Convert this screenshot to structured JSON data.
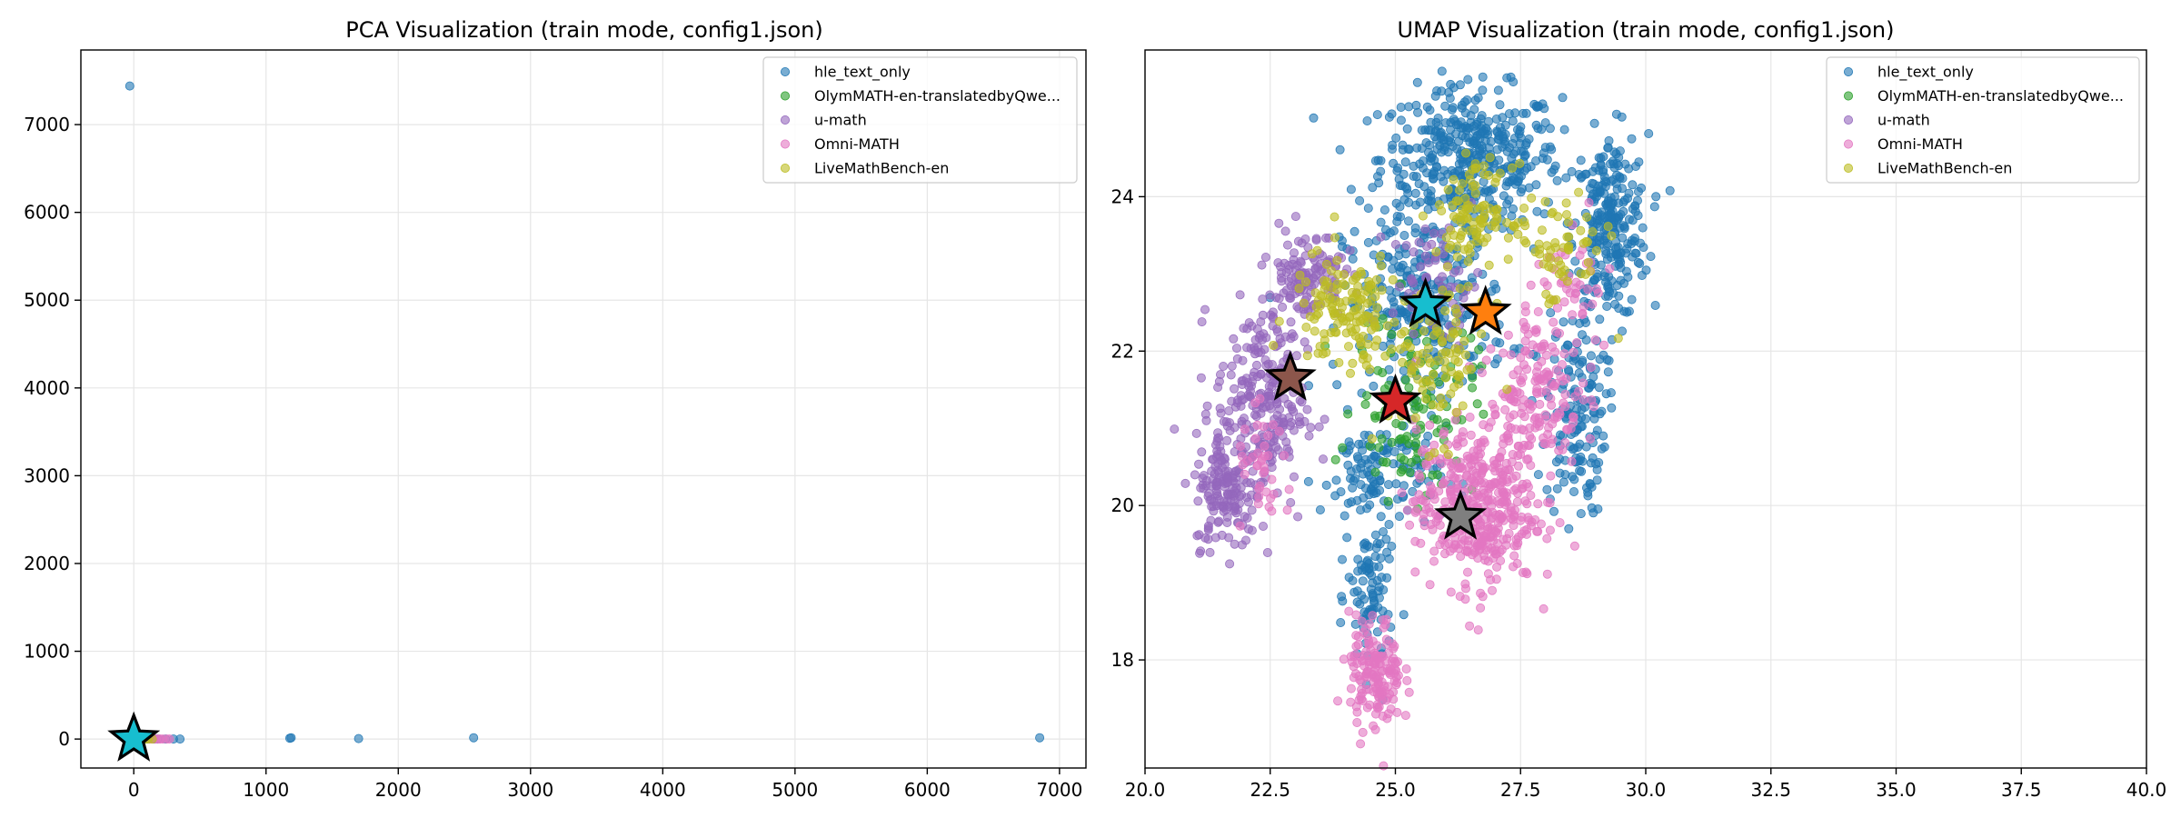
{
  "chart_data": [
    {
      "type": "scatter",
      "title": "PCA Visualization (train mode, config1.json)",
      "xlabel": "",
      "ylabel": "",
      "xlim": [
        -400,
        7200
      ],
      "ylim": [
        -330,
        7850
      ],
      "xticks": [
        0,
        1000,
        2000,
        3000,
        4000,
        5000,
        6000,
        7000
      ],
      "yticks": [
        0,
        1000,
        2000,
        3000,
        4000,
        5000,
        6000,
        7000
      ],
      "grid": true,
      "legend_position": "top-right",
      "series": [
        {
          "name": "hle_text_only",
          "color": "#1f77b4",
          "points": [
            [
              -30,
              7440
            ],
            [
              1180,
              10
            ],
            [
              1190,
              15
            ],
            [
              1700,
              5
            ],
            [
              2570,
              15
            ],
            [
              6850,
              15
            ],
            [
              350,
              0
            ],
            [
              240,
              0
            ],
            [
              180,
              0
            ],
            [
              100,
              0
            ],
            [
              -20,
              0
            ],
            [
              300,
              0
            ],
            [
              20,
              5
            ]
          ]
        },
        {
          "name": "OlymMATH-en-translatedbyQwe...",
          "color": "#2ca02c",
          "points": [
            [
              40,
              0
            ],
            [
              60,
              0
            ],
            [
              80,
              0
            ]
          ]
        },
        {
          "name": "u-math",
          "color": "#9467bd",
          "points": [
            [
              120,
              0
            ],
            [
              150,
              0
            ],
            [
              160,
              0
            ]
          ]
        },
        {
          "name": "Omni-MATH",
          "color": "#e377c2",
          "points": [
            [
              130,
              0
            ],
            [
              170,
              0
            ],
            [
              200,
              0
            ],
            [
              220,
              0
            ],
            [
              250,
              0
            ],
            [
              270,
              0
            ],
            [
              190,
              0
            ]
          ]
        },
        {
          "name": "LiveMathBench-en",
          "color": "#bcbd22",
          "points": [
            [
              90,
              0
            ],
            [
              110,
              0
            ],
            [
              140,
              0
            ]
          ]
        }
      ],
      "markers": [
        {
          "shape": "star",
          "color": "#17becf",
          "x": 0,
          "y": 0
        }
      ]
    },
    {
      "type": "scatter",
      "title": "UMAP Visualization (train mode, config1.json)",
      "xlabel": "",
      "ylabel": "",
      "xlim": [
        20.0,
        40.0
      ],
      "ylim": [
        16.6,
        25.9
      ],
      "xticks": [
        20.0,
        22.5,
        25.0,
        27.5,
        30.0,
        32.5,
        35.0,
        37.5,
        40.0
      ],
      "xtick_labels": [
        "20.0",
        "22.5",
        "25.0",
        "27.5",
        "30.0",
        "32.5",
        "35.0",
        "37.5",
        "40.0"
      ],
      "yticks": [
        18,
        20,
        22,
        24
      ],
      "grid": true,
      "legend_position": "top-right",
      "series": [
        {
          "name": "hle_text_only",
          "color": "#1f77b4",
          "clusters": [
            {
              "cx": 26.5,
              "cy": 24.5,
              "sx": 1.2,
              "sy": 0.6,
              "n": 420
            },
            {
              "cx": 29.3,
              "cy": 23.6,
              "sx": 0.5,
              "sy": 0.8,
              "n": 260
            },
            {
              "cx": 28.6,
              "cy": 21.2,
              "sx": 0.4,
              "sy": 0.9,
              "n": 150
            },
            {
              "cx": 25.6,
              "cy": 22.6,
              "sx": 1.1,
              "sy": 0.8,
              "n": 300
            },
            {
              "cx": 24.7,
              "cy": 20.4,
              "sx": 0.8,
              "sy": 0.5,
              "n": 120
            },
            {
              "cx": 24.5,
              "cy": 18.8,
              "sx": 0.3,
              "sy": 0.7,
              "n": 90
            }
          ]
        },
        {
          "name": "OlymMATH-en-translatedbyQwe...",
          "color": "#2ca02c",
          "clusters": [
            {
              "cx": 25.4,
              "cy": 21.3,
              "sx": 0.8,
              "sy": 0.8,
              "n": 110
            }
          ]
        },
        {
          "name": "u-math",
          "color": "#9467bd",
          "clusters": [
            {
              "cx": 22.3,
              "cy": 21.3,
              "sx": 0.6,
              "sy": 0.9,
              "n": 260
            },
            {
              "cx": 21.6,
              "cy": 20.2,
              "sx": 0.4,
              "sy": 0.5,
              "n": 140
            },
            {
              "cx": 23.2,
              "cy": 23.0,
              "sx": 0.5,
              "sy": 0.4,
              "n": 120
            },
            {
              "cx": 25.8,
              "cy": 22.9,
              "sx": 0.6,
              "sy": 0.5,
              "n": 60
            }
          ]
        },
        {
          "name": "Omni-MATH",
          "color": "#e377c2",
          "clusters": [
            {
              "cx": 26.6,
              "cy": 20.0,
              "sx": 0.8,
              "sy": 0.7,
              "n": 420
            },
            {
              "cx": 27.8,
              "cy": 21.4,
              "sx": 0.6,
              "sy": 0.6,
              "n": 150
            },
            {
              "cx": 24.6,
              "cy": 17.8,
              "sx": 0.35,
              "sy": 0.5,
              "n": 160
            },
            {
              "cx": 28.5,
              "cy": 22.7,
              "sx": 0.6,
              "sy": 0.6,
              "n": 60
            },
            {
              "cx": 22.4,
              "cy": 20.4,
              "sx": 0.4,
              "sy": 0.5,
              "n": 40
            }
          ]
        },
        {
          "name": "LiveMathBench-en",
          "color": "#bcbd22",
          "clusters": [
            {
              "cx": 24.0,
              "cy": 22.5,
              "sx": 0.7,
              "sy": 0.5,
              "n": 140
            },
            {
              "cx": 26.6,
              "cy": 23.8,
              "sx": 0.5,
              "sy": 0.4,
              "n": 100
            },
            {
              "cx": 25.8,
              "cy": 21.9,
              "sx": 0.7,
              "sy": 0.7,
              "n": 100
            },
            {
              "cx": 28.3,
              "cy": 23.3,
              "sx": 0.6,
              "sy": 0.5,
              "n": 60
            }
          ]
        }
      ],
      "markers": [
        {
          "shape": "star",
          "color": "#17becf",
          "x": 25.6,
          "y": 22.6
        },
        {
          "shape": "star",
          "color": "#ff7f0e",
          "x": 26.8,
          "y": 22.5
        },
        {
          "shape": "star",
          "color": "#8c564b",
          "x": 22.9,
          "y": 21.65
        },
        {
          "shape": "star",
          "color": "#d62728",
          "x": 25.0,
          "y": 21.35
        },
        {
          "shape": "star",
          "color": "#7f7f7f",
          "x": 26.3,
          "y": 19.85
        }
      ]
    }
  ]
}
